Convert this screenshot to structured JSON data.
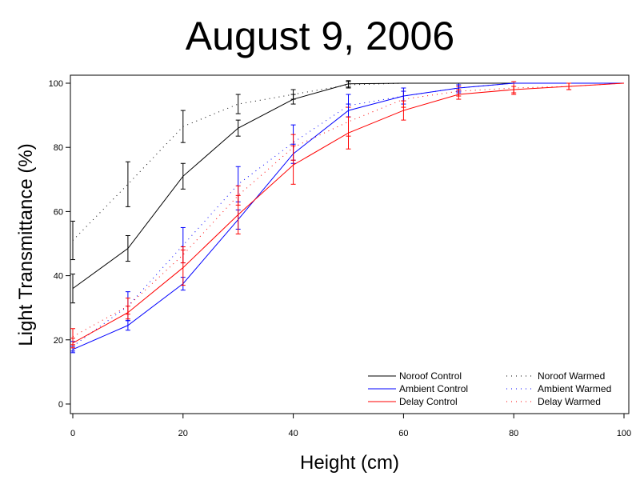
{
  "chart_data": {
    "type": "line",
    "title": "August 9, 2006",
    "xlabel": "Height (cm)",
    "ylabel": "Light Transmittance (%)",
    "xlim": [
      0,
      100
    ],
    "ylim": [
      0,
      100
    ],
    "xticks": [
      0,
      20,
      40,
      60,
      80,
      100
    ],
    "yticks": [
      0,
      20,
      40,
      60,
      80,
      100
    ],
    "grid": false,
    "legend_position": "bottom-right",
    "series": [
      {
        "name": "Noroof Control",
        "color": "#000000",
        "style": "solid",
        "x": [
          0,
          10,
          20,
          30,
          40,
          50,
          60,
          70,
          80,
          90,
          100
        ],
        "y": [
          36,
          48.5,
          71,
          86,
          95,
          99.8,
          100,
          100,
          100,
          100,
          100
        ],
        "err": [
          4.5,
          4,
          4,
          2.5,
          1.5,
          1,
          null,
          null,
          null,
          null,
          null
        ]
      },
      {
        "name": "Ambient Control",
        "color": "#0000ff",
        "style": "solid",
        "x": [
          0,
          10,
          20,
          30,
          40,
          50,
          60,
          70,
          80,
          90,
          100
        ],
        "y": [
          17,
          24.5,
          37.5,
          57.5,
          78,
          91.5,
          96,
          98.5,
          100,
          100,
          100
        ],
        "err": [
          1,
          1.5,
          2,
          3,
          3,
          2,
          1.5,
          1,
          null,
          null,
          null
        ]
      },
      {
        "name": "Delay Control",
        "color": "#ff0000",
        "style": "solid",
        "x": [
          0,
          10,
          20,
          30,
          40,
          50,
          60,
          70,
          80,
          90,
          100
        ],
        "y": [
          19,
          28.5,
          42.5,
          59,
          74.5,
          84.5,
          91.5,
          96.5,
          98,
          99,
          100
        ],
        "err": [
          1.5,
          2,
          5.5,
          6,
          6,
          5,
          3,
          1.5,
          1,
          1,
          null
        ]
      },
      {
        "name": "Noroof Warmed",
        "color": "#000000",
        "style": "dotted",
        "x": [
          0,
          10,
          20,
          30,
          40,
          50,
          60,
          70,
          80,
          90,
          100
        ],
        "y": [
          51,
          68.5,
          86.5,
          93.5,
          96.5,
          99.5,
          100,
          100,
          100,
          100,
          100
        ],
        "err": [
          6,
          7,
          5,
          3,
          1.5,
          1,
          null,
          null,
          null,
          null,
          null
        ]
      },
      {
        "name": "Ambient Warmed",
        "color": "#0000ff",
        "style": "dotted",
        "x": [
          0,
          10,
          20,
          30,
          40,
          50,
          60,
          70,
          80,
          90,
          100
        ],
        "y": [
          18,
          30.5,
          49.5,
          68.5,
          81.5,
          93,
          96,
          98.5,
          100,
          100,
          100
        ],
        "err": [
          1.5,
          4.5,
          5.5,
          5.5,
          5.5,
          3.5,
          2.5,
          1.5,
          null,
          null,
          null
        ]
      },
      {
        "name": "Delay Warmed",
        "color": "#ff0000",
        "style": "dotted",
        "x": [
          0,
          10,
          20,
          30,
          40,
          50,
          60,
          70,
          80,
          90,
          100
        ],
        "y": [
          21,
          30.5,
          46.5,
          65,
          80,
          88,
          95,
          97.5,
          98.5,
          99,
          100
        ],
        "err": [
          2.5,
          2.5,
          2.5,
          3,
          4,
          4.5,
          2.5,
          1.5,
          2,
          1,
          null
        ]
      }
    ]
  }
}
